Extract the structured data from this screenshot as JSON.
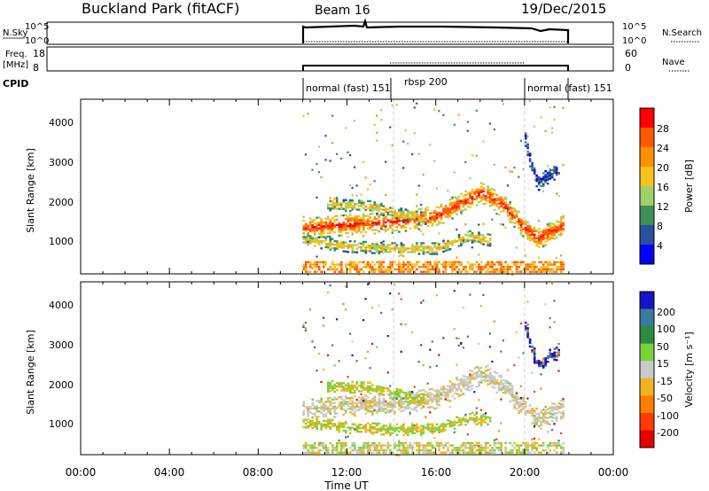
{
  "header": {
    "title": "Buckland Park (fitACF)",
    "beam": "Beam 16",
    "date": "19/Dec/2015"
  },
  "panels": {
    "nsky": {
      "label": "N.Sky",
      "left_ticks": [
        "10^5",
        "10^0"
      ],
      "right_ticks": [
        "10^5",
        "10^0"
      ],
      "right_label": "N.Search"
    },
    "freq": {
      "label_line1": "Freq.",
      "label_line2": "[MHz]",
      "left_ticks": [
        "18",
        "8"
      ],
      "right_ticks": [
        "60",
        "0"
      ],
      "right_label": "Nave"
    },
    "cpid": {
      "label": "CPID",
      "modes": [
        {
          "label": "normal (fast) 151",
          "start_h": 10.0
        },
        {
          "label": "rbsp 200",
          "start_h": 14.1
        },
        {
          "label": "normal (fast) 151",
          "start_h": 20.0
        }
      ]
    }
  },
  "axes": {
    "x_ticks": [
      "00:00",
      "04:00",
      "08:00",
      "12:00",
      "16:00",
      "20:00",
      "00:00"
    ],
    "x_label": "Time UT",
    "y_ticks": [
      "1000",
      "2000",
      "3000",
      "4000"
    ],
    "y_label": "Slant Range [km]"
  },
  "colorbars": {
    "power": {
      "label": "Power [dB]",
      "ticks": [
        "28",
        "24",
        "20",
        "16",
        "12",
        "8",
        "4"
      ],
      "colors": [
        "#ff0000",
        "#ff5a00",
        "#ff9000",
        "#f6c21a",
        "#9fd06a",
        "#3e8f5a",
        "#2a4f9e",
        "#0000ff"
      ]
    },
    "velocity": {
      "label": "Velocity [m s⁻¹]",
      "ticks": [
        "200",
        "100",
        "50",
        "15",
        "-15",
        "-50",
        "-100",
        "-200"
      ],
      "colors": [
        "#1414c8",
        "#3a7a9a",
        "#2c8c3c",
        "#77d33a",
        "#c8c8c8",
        "#f2b21e",
        "#ff7d00",
        "#ff3c00",
        "#e40000"
      ]
    }
  },
  "chart_data": {
    "type": "heatmap",
    "x_range_hours": [
      0,
      24
    ],
    "y_range_km": [
      180,
      4550
    ],
    "data_time_range_hours": [
      10.0,
      21.8
    ],
    "range_tracks": [
      {
        "description": "main echo band",
        "points": [
          [
            10.0,
            1300
          ],
          [
            12.0,
            1400
          ],
          [
            14.0,
            1450
          ],
          [
            16.0,
            1600
          ],
          [
            17.0,
            1900
          ],
          [
            18.0,
            2200
          ],
          [
            19.0,
            1900
          ],
          [
            20.0,
            1300
          ],
          [
            20.6,
            1050
          ],
          [
            21.8,
            1400
          ]
        ]
      },
      {
        "description": "upper band",
        "points": [
          [
            11.0,
            1900
          ],
          [
            13.0,
            1850
          ],
          [
            14.5,
            1650
          ],
          [
            15.5,
            1550
          ]
        ]
      },
      {
        "description": "lower band",
        "points": [
          [
            10.0,
            1000
          ],
          [
            12.0,
            850
          ],
          [
            14.0,
            800
          ],
          [
            16.0,
            800
          ],
          [
            17.5,
            1100
          ],
          [
            18.5,
            1000
          ]
        ]
      },
      {
        "description": "far-range arc",
        "points": [
          [
            20.0,
            3500
          ],
          [
            20.3,
            2800
          ],
          [
            20.6,
            2400
          ],
          [
            21.0,
            2600
          ],
          [
            21.6,
            2800
          ]
        ]
      }
    ]
  }
}
